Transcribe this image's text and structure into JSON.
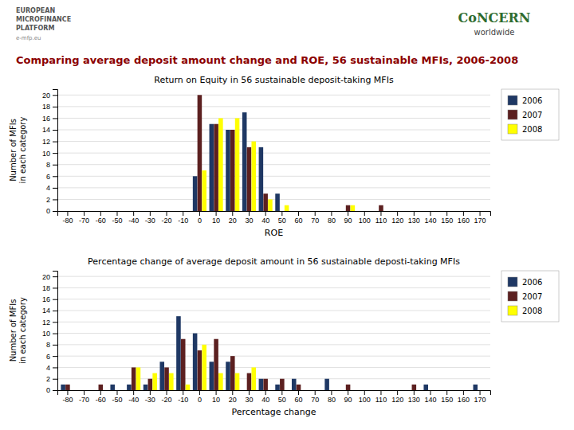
{
  "title": "Comparing average deposit amount change and ROE, 56 sustainable MFIs, 2006-2008",
  "annotations": [
    "EUROPEAN",
    "MICROFINANCE",
    "PLATFORM",
    "e-mfp.eu",
    "CoNCERN",
    "worldwide"
  ],
  "chart_data": [
    {
      "type": "bar",
      "title": "Return on Equity in 56 sustainable deposit-taking MFIs",
      "x_label": "ROE",
      "y_label": "Number of MFIs\nin each category",
      "categories": [
        -80,
        -70,
        -60,
        -50,
        -40,
        -30,
        -20,
        -10,
        0,
        10,
        20,
        30,
        40,
        50,
        60,
        70,
        80,
        90,
        100,
        110,
        120,
        130,
        140,
        150,
        160,
        170
      ],
      "series": [
        {
          "name": "2006",
          "color": "#1F3864",
          "values": [
            0,
            0,
            0,
            0,
            0,
            0,
            0,
            0,
            6,
            15,
            14,
            17,
            11,
            3,
            0,
            0,
            0,
            0,
            0,
            0,
            0,
            0,
            0,
            0,
            0,
            0
          ]
        },
        {
          "name": "2007",
          "color": "#5C2020",
          "values": [
            0,
            0,
            0,
            0,
            0,
            0,
            0,
            0,
            20,
            15,
            14,
            11,
            3,
            0,
            0,
            0,
            0,
            1,
            0,
            1,
            0,
            0,
            0,
            0,
            0,
            0
          ]
        },
        {
          "name": "2008",
          "color": "#FFFF00",
          "values": [
            0,
            0,
            0,
            0,
            0,
            0,
            0,
            0,
            7,
            16,
            16,
            12,
            2,
            1,
            0,
            0,
            0,
            1,
            0,
            0,
            0,
            0,
            0,
            0,
            0,
            0
          ]
        }
      ],
      "ylim": [
        0,
        21
      ],
      "yticks": [
        0,
        2,
        4,
        6,
        8,
        10,
        12,
        14,
        16,
        18,
        20
      ],
      "grid": true,
      "legend": "right"
    },
    {
      "type": "bar",
      "title": "Percentage change of average deposit amount in 56 sustainable deposti-taking MFIs",
      "x_label": "Percentage change",
      "y_label": "Number of MFIs\nin each category",
      "categories": [
        -80,
        -70,
        -60,
        -50,
        -40,
        -30,
        -20,
        -10,
        0,
        10,
        20,
        30,
        40,
        50,
        60,
        70,
        80,
        90,
        100,
        110,
        120,
        130,
        140,
        150,
        160,
        170
      ],
      "series": [
        {
          "name": "2006",
          "color": "#1F3864",
          "values": [
            1,
            0,
            0,
            1,
            1,
            1,
            5,
            13,
            10,
            5,
            5,
            0,
            2,
            1,
            2,
            0,
            2,
            0,
            0,
            0,
            0,
            0,
            1,
            0,
            0,
            1
          ]
        },
        {
          "name": "2007",
          "color": "#5C2020",
          "values": [
            1,
            0,
            1,
            0,
            4,
            2,
            4,
            9,
            7,
            9,
            6,
            3,
            2,
            2,
            1,
            0,
            0,
            1,
            0,
            0,
            0,
            1,
            0,
            0,
            0,
            0
          ]
        },
        {
          "name": "2008",
          "color": "#FFFF00",
          "values": [
            0,
            0,
            0,
            0,
            4,
            3,
            3,
            1,
            8,
            3,
            3,
            4,
            0,
            0,
            0,
            0,
            0,
            0,
            0,
            0,
            0,
            0,
            0,
            0,
            0,
            0
          ]
        }
      ],
      "ylim": [
        0,
        21
      ],
      "yticks": [
        0,
        2,
        4,
        6,
        8,
        10,
        12,
        14,
        16,
        18,
        20
      ],
      "grid": true,
      "legend": "right"
    }
  ]
}
